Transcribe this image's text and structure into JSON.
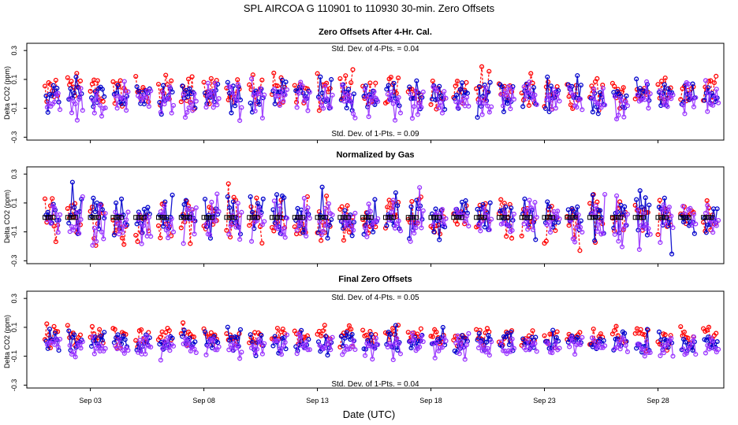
{
  "main_title": "SPL    AIRCOA G    110901 to 110930    30-min. Zero Offsets",
  "x_axis_label": "Date (UTC)",
  "x_tick_labels": [
    "Sep 03",
    "Sep 08",
    "Sep 13",
    "Sep 18",
    "Sep 23",
    "Sep 28"
  ],
  "colors": {
    "red": "#ff0000",
    "blue": "#0000cc",
    "purple": "#9933ff",
    "black": "#000000"
  },
  "chart_data": [
    {
      "type": "scatter",
      "title": "Zero Offsets After 4-Hr. Cal.",
      "ylabel": "Delta CO2 (ppm)",
      "ylim": [
        -0.32,
        0.35
      ],
      "yticks": [
        "0.3",
        "0.1",
        "-0.1",
        "-0.3"
      ],
      "ytick_values": [
        0.3,
        0.1,
        -0.1,
        -0.3
      ],
      "xlim": [
        0.2,
        30.9
      ],
      "annotation_top": "Std. Dev. of 4-Pts. = 0.04",
      "annotation_bottom": "Std. Dev. of 1-Pts. = 0.09",
      "series": [
        {
          "name": "red",
          "color": "#ff0000",
          "spread": 0.06,
          "mean": 0.02
        },
        {
          "name": "blue",
          "color": "#0000cc",
          "spread": 0.06,
          "mean": -0.01
        },
        {
          "name": "purple",
          "color": "#9933ff",
          "spread": 0.06,
          "mean": -0.04
        }
      ]
    },
    {
      "type": "scatter",
      "title": "Normalized by Gas",
      "ylabel": "Delta CO2 (ppm)",
      "ylim": [
        -0.32,
        0.35
      ],
      "yticks": [
        "0.3",
        "0.1",
        "-0.1",
        "-0.3"
      ],
      "ytick_values": [
        0.3,
        0.1,
        -0.1,
        -0.3
      ],
      "xlim": [
        0.2,
        30.9
      ],
      "series": [
        {
          "name": "red",
          "color": "#ff0000",
          "spread": 0.08,
          "mean": 0.0
        },
        {
          "name": "blue",
          "color": "#0000cc",
          "spread": 0.08,
          "mean": 0.0
        },
        {
          "name": "purple",
          "color": "#9933ff",
          "spread": 0.08,
          "mean": -0.02
        },
        {
          "name": "gas-mean",
          "color": "#000000",
          "spread": 0.0,
          "mean": 0.0
        }
      ]
    },
    {
      "type": "scatter",
      "title": "Final Zero Offsets",
      "ylabel": "Delta CO2 (ppm)",
      "ylim": [
        -0.32,
        0.35
      ],
      "yticks": [
        "0.3",
        "0.1",
        "-0.1",
        "-0.3"
      ],
      "ytick_values": [
        0.3,
        0.1,
        -0.1,
        -0.3
      ],
      "xlim": [
        0.2,
        30.9
      ],
      "annotation_top": "Std. Dev. of 4-Pts. = 0.05",
      "annotation_bottom": "Std. Dev. of 1-Pts. = 0.04",
      "series": [
        {
          "name": "red",
          "color": "#ff0000",
          "spread": 0.04,
          "mean": 0.04
        },
        {
          "name": "blue",
          "color": "#0000cc",
          "spread": 0.04,
          "mean": 0.0
        },
        {
          "name": "purple",
          "color": "#9933ff",
          "spread": 0.04,
          "mean": -0.03
        }
      ]
    }
  ]
}
